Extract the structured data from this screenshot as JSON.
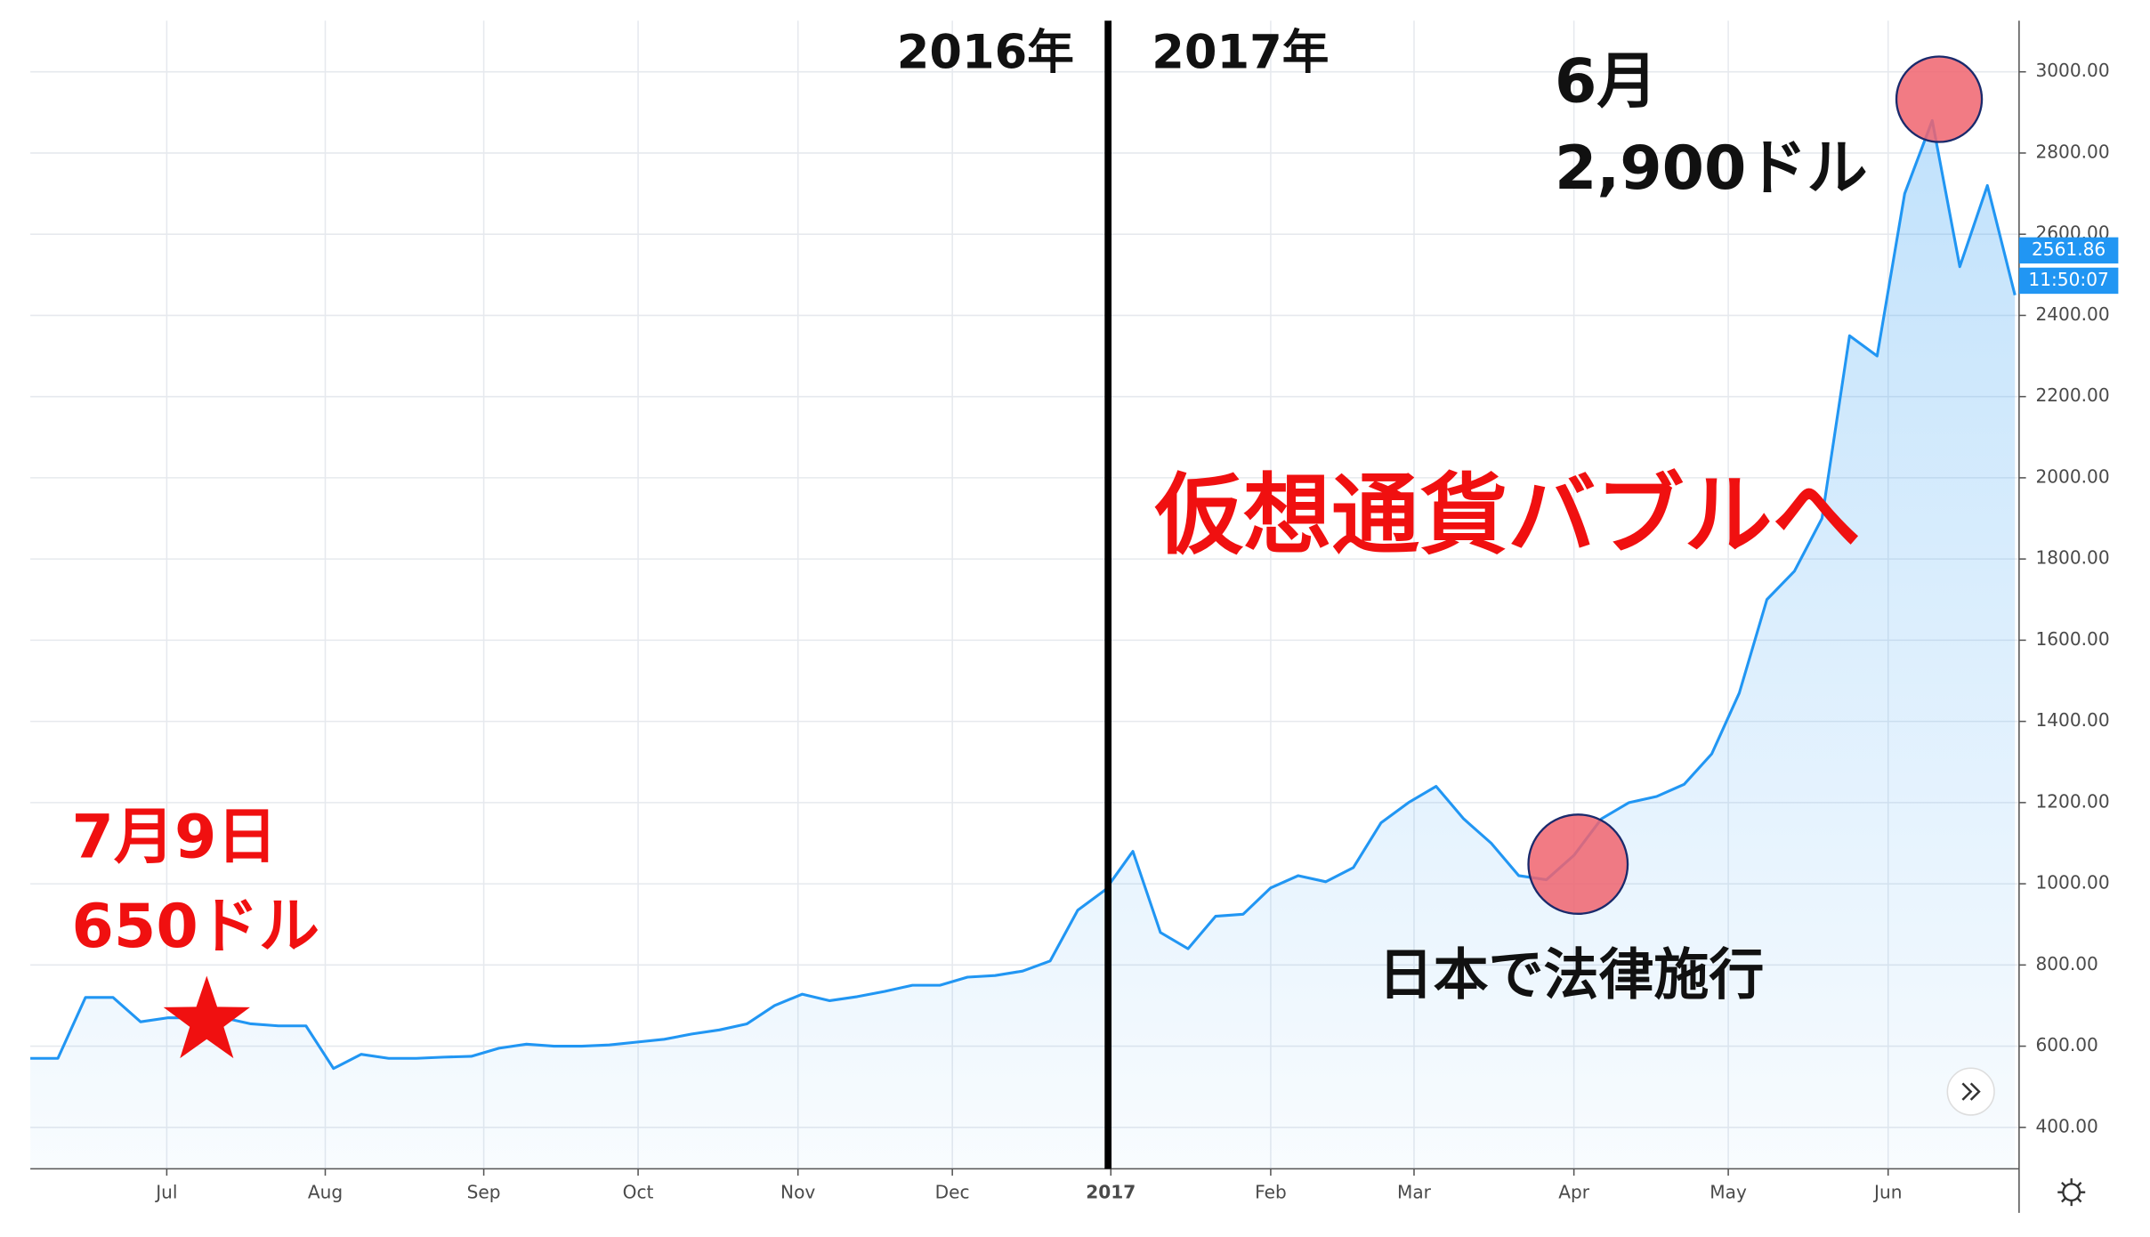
{
  "chart_data": {
    "type": "line",
    "color": "#2196f3",
    "values": [
      570,
      570,
      720,
      720,
      660,
      670,
      670,
      670,
      655,
      650,
      650,
      545,
      580,
      570,
      570,
      573,
      575,
      595,
      605,
      600,
      600,
      603,
      610,
      617,
      630,
      640,
      655,
      700,
      728,
      712,
      722,
      735,
      750,
      750,
      770,
      774,
      785,
      810,
      935,
      985,
      1080,
      880,
      840,
      920,
      925,
      990,
      1020,
      1005,
      1040,
      1150,
      1200,
      1240,
      1160,
      1100,
      1020,
      1010,
      1070,
      1160,
      1200,
      1215,
      1245,
      1320,
      1470,
      1700,
      1770,
      1900,
      2350,
      2300,
      2700,
      2880,
      2520,
      2720,
      2450
    ],
    "xlim": [
      0,
      72
    ],
    "xticks": [
      {
        "value": 4.95,
        "label": "Jul"
      },
      {
        "value": 10.7,
        "label": "Aug"
      },
      {
        "value": 16.45,
        "label": "Sep"
      },
      {
        "value": 22.05,
        "label": "Oct"
      },
      {
        "value": 27.85,
        "label": "Nov"
      },
      {
        "value": 33.45,
        "label": "Dec"
      },
      {
        "value": 39.2,
        "label": "2017"
      },
      {
        "value": 45,
        "label": "Feb"
      },
      {
        "value": 50.2,
        "label": "Mar"
      },
      {
        "value": 56,
        "label": "Apr"
      },
      {
        "value": 61.6,
        "label": "May"
      },
      {
        "value": 67.4,
        "label": "Jun"
      }
    ],
    "ylim": [
      298,
      3126
    ],
    "yticks": [
      {
        "value": 400,
        "label": "400.00"
      },
      {
        "value": 600,
        "label": "600.00"
      },
      {
        "value": 800,
        "label": "800.00"
      },
      {
        "value": 1000,
        "label": "1000.00"
      },
      {
        "value": 1200,
        "label": "1200.00"
      },
      {
        "value": 1400,
        "label": "1400.00"
      },
      {
        "value": 1600,
        "label": "1600.00"
      },
      {
        "value": 1800,
        "label": "1800.00"
      },
      {
        "value": 2000,
        "label": "2000.00"
      },
      {
        "value": 2200,
        "label": "2200.00"
      },
      {
        "value": 2400,
        "label": "2400.00"
      },
      {
        "value": 2600,
        "label": "2600.00"
      },
      {
        "value": 2800,
        "label": "2800.00"
      },
      {
        "value": 3000,
        "label": "3000.00"
      }
    ],
    "grid": true,
    "last_price": 2561.86,
    "time_label": "11:50:07",
    "annotations": {
      "year_left": "2016年",
      "year_right": "2017年",
      "peak_month": "6月",
      "peak_price": "2,900ドル",
      "headline": "仮想通貨バブルへ",
      "start_date": "7月9日",
      "start_price": "650ドル",
      "law": "日本で法律施行"
    }
  }
}
